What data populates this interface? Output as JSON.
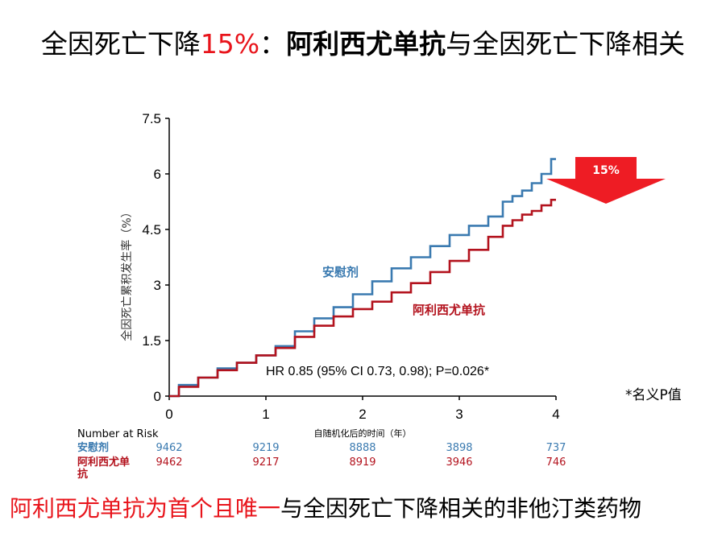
{
  "title": {
    "part1": "全因死亡下降",
    "part2": "15%",
    "part3": "：",
    "part4": "阿利西尤单抗",
    "part5": "与全因死亡下降相关"
  },
  "chart_data": {
    "type": "line",
    "ylabel": "全因死亡累积发生率（%）",
    "xlabel": "自随机化后的时间（年）",
    "xlim": [
      0,
      4
    ],
    "ylim": [
      0,
      7.5
    ],
    "x_ticks": [
      "0",
      "1",
      "2",
      "3",
      "4"
    ],
    "y_ticks": [
      "0",
      "1.5",
      "3",
      "4.5",
      "6",
      "7.5"
    ],
    "series": [
      {
        "name": "安慰剂",
        "color": "#3a7ab0",
        "x": [
          0,
          0.2,
          0.4,
          0.6,
          0.8,
          1.0,
          1.2,
          1.4,
          1.6,
          1.8,
          2.0,
          2.2,
          2.4,
          2.6,
          2.8,
          3.0,
          3.2,
          3.4,
          3.5,
          3.6,
          3.7,
          3.8,
          3.9,
          4.0
        ],
        "values": [
          0,
          0.3,
          0.5,
          0.75,
          0.9,
          1.1,
          1.35,
          1.75,
          2.1,
          2.4,
          2.75,
          3.1,
          3.45,
          3.75,
          4.05,
          4.35,
          4.6,
          4.85,
          5.25,
          5.4,
          5.55,
          5.75,
          6.0,
          6.4
        ]
      },
      {
        "name": "阿利西尤单抗",
        "color": "#b3121d",
        "x": [
          0,
          0.2,
          0.4,
          0.6,
          0.8,
          1.0,
          1.2,
          1.4,
          1.6,
          1.8,
          2.0,
          2.2,
          2.4,
          2.6,
          2.8,
          3.0,
          3.2,
          3.4,
          3.5,
          3.6,
          3.7,
          3.8,
          3.9,
          4.0
        ],
        "values": [
          0,
          0.25,
          0.5,
          0.7,
          0.9,
          1.1,
          1.3,
          1.6,
          1.9,
          2.15,
          2.35,
          2.55,
          2.8,
          3.05,
          3.35,
          3.65,
          3.95,
          4.3,
          4.6,
          4.75,
          4.9,
          5.0,
          5.15,
          5.3
        ]
      }
    ],
    "annotations": {
      "hr_text": "HR 0.85 (95% CI 0.73, 0.98); P=0.026*",
      "arrow_label": "15%"
    },
    "legend": "inline"
  },
  "note": "*名义P值",
  "risk_table": {
    "header": "Number at Risk",
    "rows": [
      {
        "label": "安慰剂",
        "color": "#3a7ab0",
        "values": [
          "9462",
          "9219",
          "8888",
          "3898",
          "737"
        ]
      },
      {
        "label": "阿利西尤单抗",
        "color": "#b3121d",
        "values": [
          "9462",
          "9217",
          "8919",
          "3946",
          "746"
        ]
      }
    ]
  },
  "footer": {
    "part1": "阿利西尤单抗为首个且唯一",
    "part2": "与全因死亡下降相关的非他汀类药物"
  }
}
